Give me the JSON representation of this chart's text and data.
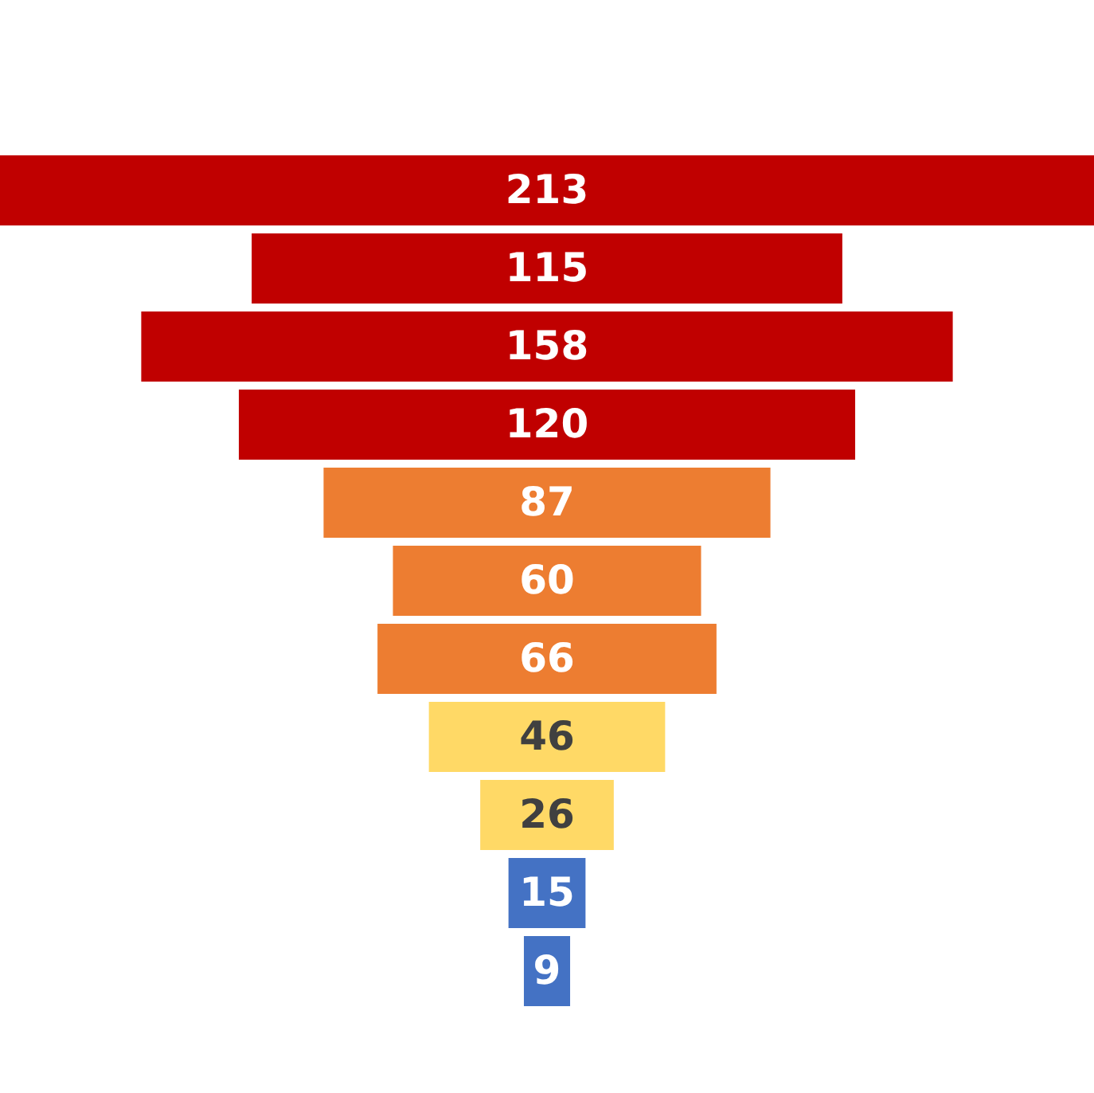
{
  "chart_data": {
    "type": "other",
    "categories": [
      null,
      null,
      null,
      null,
      null,
      null,
      null,
      null,
      null,
      null,
      null
    ],
    "values": [
      213,
      115,
      158,
      120,
      87,
      60,
      66,
      46,
      26,
      15,
      9
    ],
    "colors": [
      "#c00000",
      "#c00000",
      "#c00000",
      "#c00000",
      "#ed7d31",
      "#ed7d31",
      "#ed7d31",
      "#ffd966",
      "#ffd966",
      "#4472c4",
      "#4472c4"
    ],
    "data_labels": true
  }
}
